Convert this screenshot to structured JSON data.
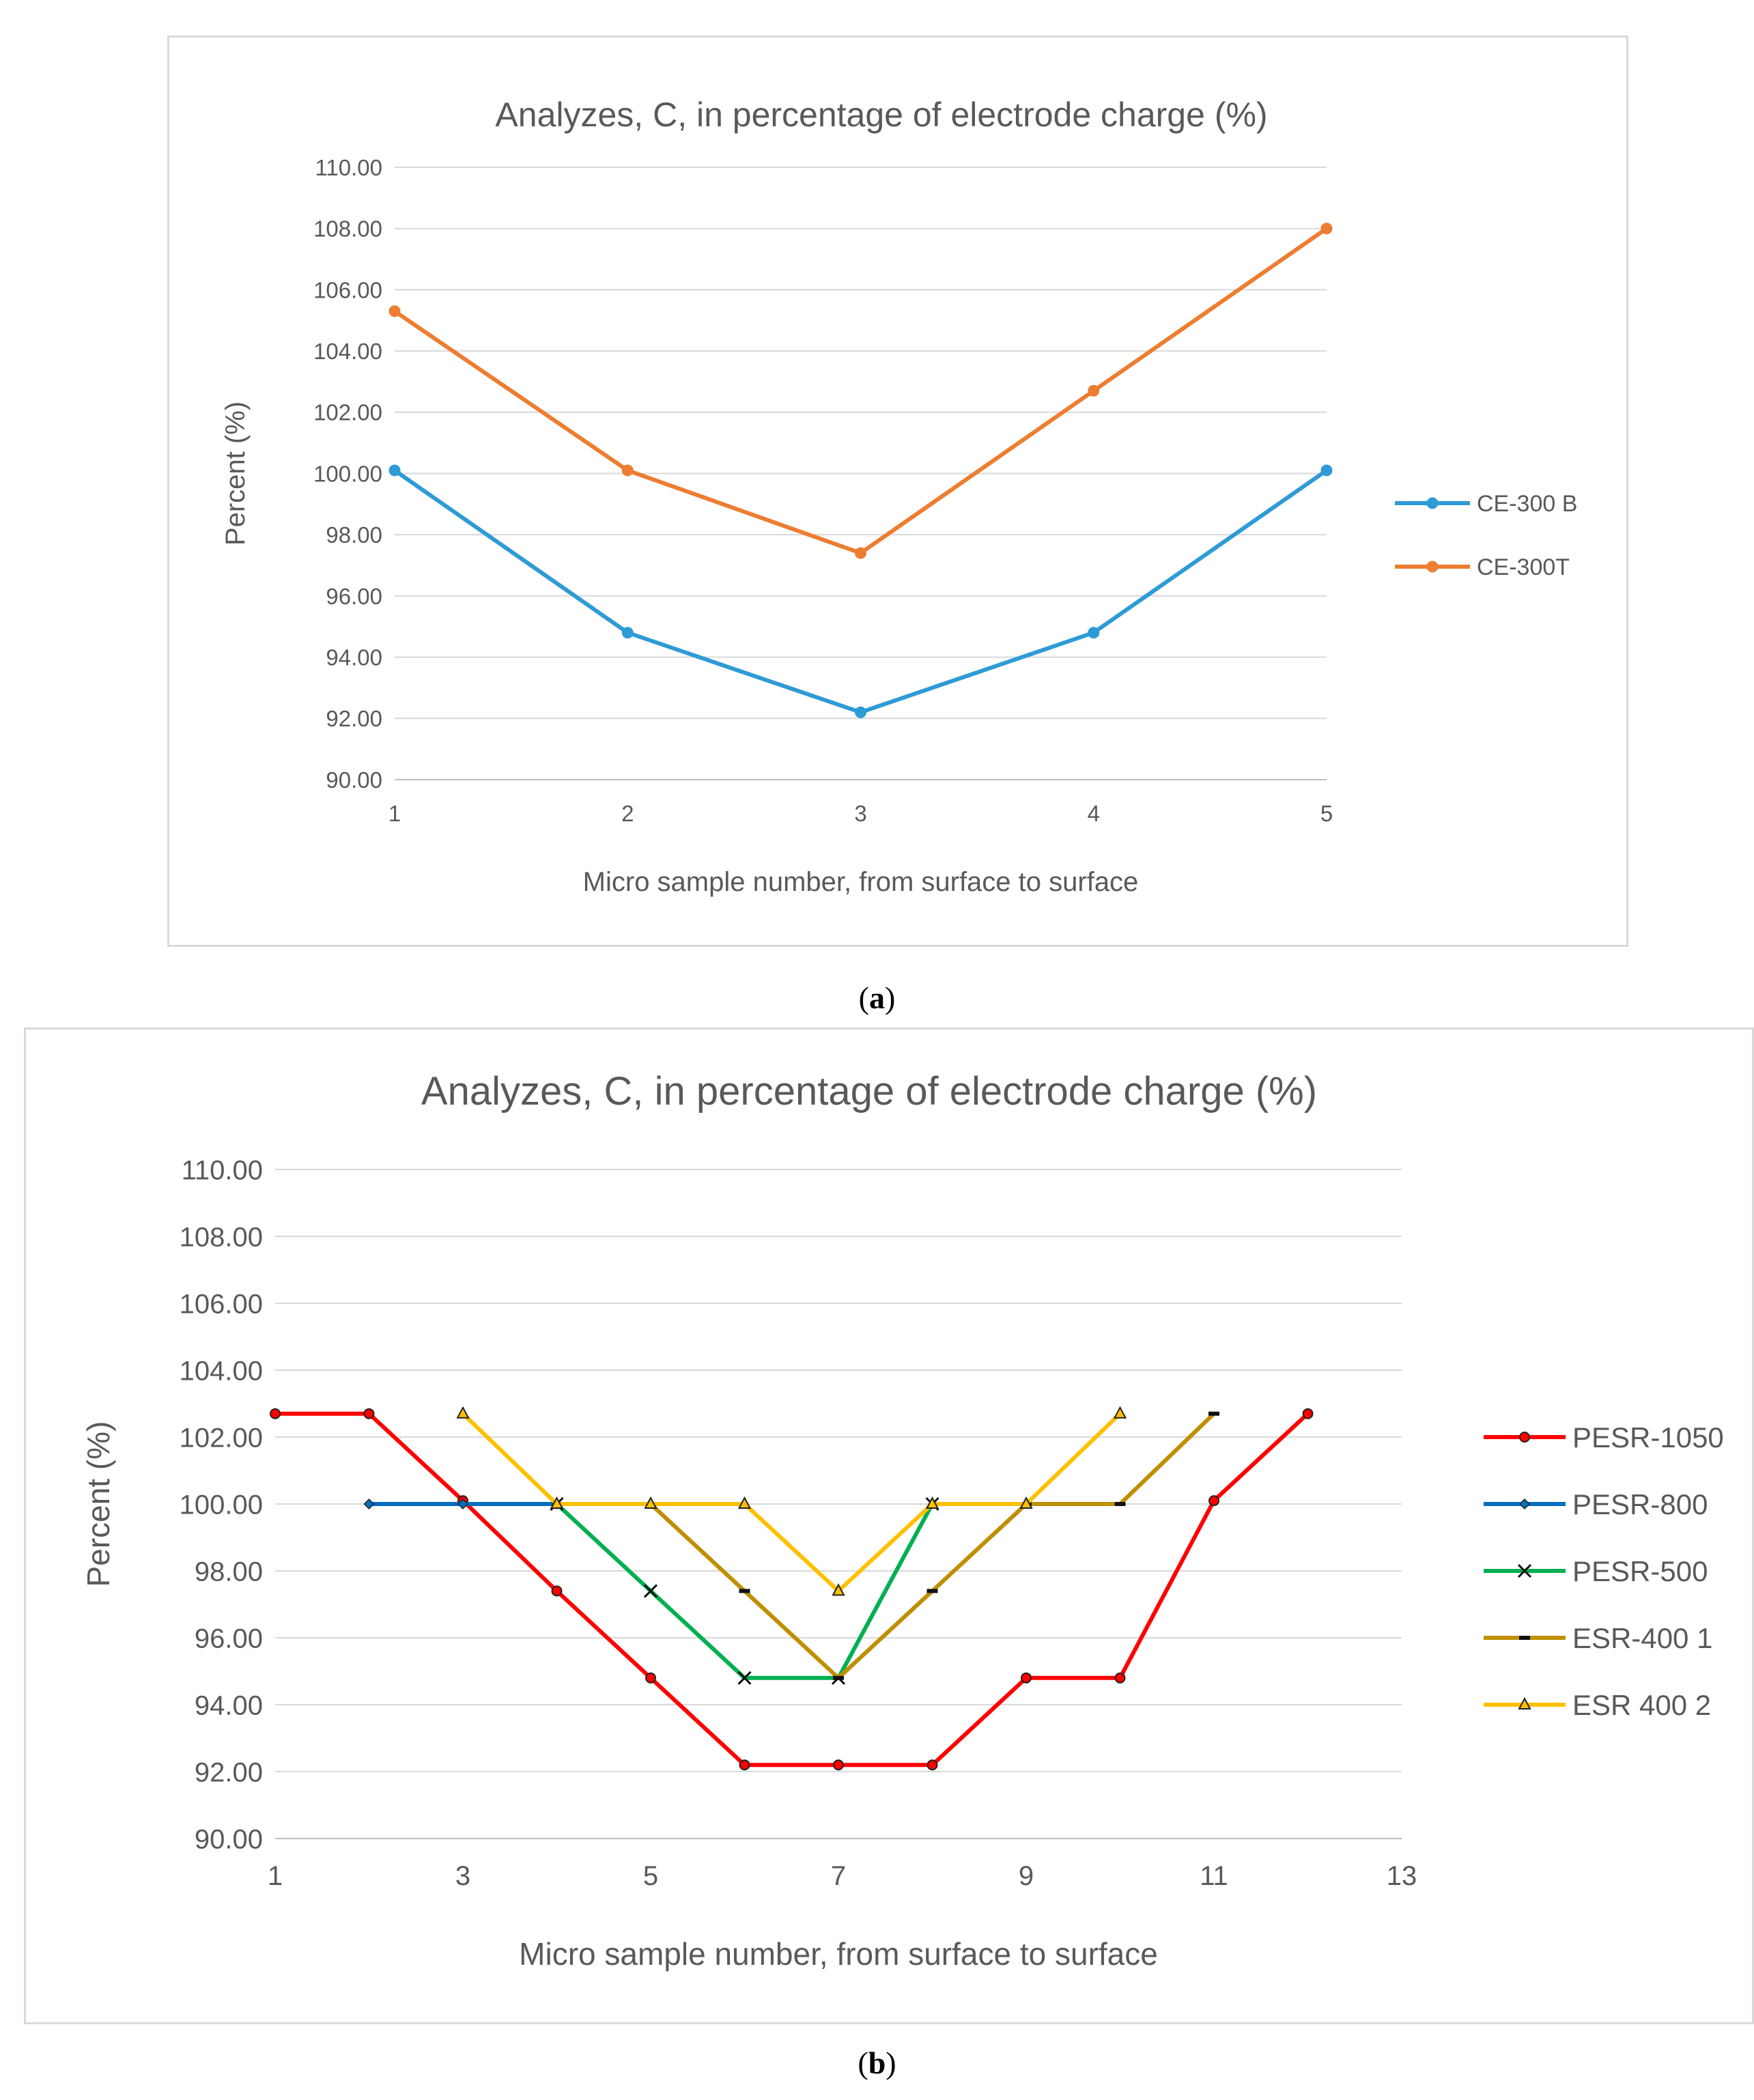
{
  "chart_data": [
    {
      "type": "line",
      "title": "Analyzes, C, in percentage of electrode charge (%)",
      "xlabel": "Micro sample number, from surface to surface",
      "ylabel": "Percent (%)",
      "ylim": [
        90,
        110
      ],
      "xlim": [
        1,
        5
      ],
      "yticks": [
        "90.00",
        "92.00",
        "94.00",
        "96.00",
        "98.00",
        "100.00",
        "102.00",
        "104.00",
        "106.00",
        "108.00",
        "110.00"
      ],
      "xticks": [
        "1",
        "2",
        "3",
        "4",
        "5"
      ],
      "grid": true,
      "legend_position": "right",
      "series": [
        {
          "name": "CE-300 B",
          "color": "#2e9bd6",
          "marker": "circle",
          "x": [
            1,
            2,
            3,
            4,
            5
          ],
          "values": [
            100.1,
            94.8,
            92.2,
            94.8,
            100.1
          ]
        },
        {
          "name": "CE-300T",
          "color": "#ed7d31",
          "marker": "circle",
          "x": [
            1,
            2,
            3,
            4,
            5
          ],
          "values": [
            105.3,
            100.1,
            97.4,
            102.7,
            108.0
          ]
        }
      ]
    },
    {
      "type": "line",
      "title": "Analyzes, C, in percentage of electrode charge (%)",
      "xlabel": "Micro sample number, from surface to surface",
      "ylabel": "Percent (%)",
      "ylim": [
        90,
        110
      ],
      "xlim": [
        1,
        13
      ],
      "yticks": [
        "90.00",
        "92.00",
        "94.00",
        "96.00",
        "98.00",
        "100.00",
        "102.00",
        "104.00",
        "106.00",
        "108.00",
        "110.00"
      ],
      "xticks": [
        "1",
        "3",
        "5",
        "7",
        "9",
        "11",
        "13"
      ],
      "grid": true,
      "legend_position": "right",
      "series": [
        {
          "name": "PESR-1050",
          "color": "#ff0000",
          "marker": "circle",
          "x": [
            1,
            2,
            3,
            4,
            5,
            6,
            7,
            8,
            9,
            10,
            11,
            12
          ],
          "values": [
            102.7,
            102.7,
            100.1,
            97.4,
            94.8,
            92.2,
            92.2,
            92.2,
            94.8,
            94.8,
            100.1,
            102.7
          ]
        },
        {
          "name": "PESR-800",
          "color": "#0070c0",
          "marker": "diamond",
          "x": [
            2,
            3,
            4
          ],
          "values": [
            100.0,
            100.0,
            100.0
          ]
        },
        {
          "name": "PESR-500",
          "color": "#00b050",
          "marker": "x",
          "x": [
            4,
            5,
            6,
            7,
            8
          ],
          "values": [
            100.0,
            97.4,
            94.8,
            94.8,
            100.0
          ]
        },
        {
          "name": "ESR-400 1",
          "color": "#bf8f00",
          "marker": "dash",
          "x": [
            5,
            6,
            7,
            8,
            9,
            10,
            11
          ],
          "values": [
            100.0,
            97.4,
            94.8,
            97.4,
            100.0,
            100.0,
            102.7
          ]
        },
        {
          "name": "ESR 400 2",
          "color": "#ffc000",
          "marker": "triangle",
          "x": [
            3,
            4,
            5,
            6,
            7,
            8,
            9,
            10
          ],
          "values": [
            102.7,
            100.0,
            100.0,
            100.0,
            97.4,
            100.0,
            100.0,
            102.7
          ]
        }
      ]
    }
  ],
  "captions": {
    "a": "a",
    "b": "b"
  }
}
